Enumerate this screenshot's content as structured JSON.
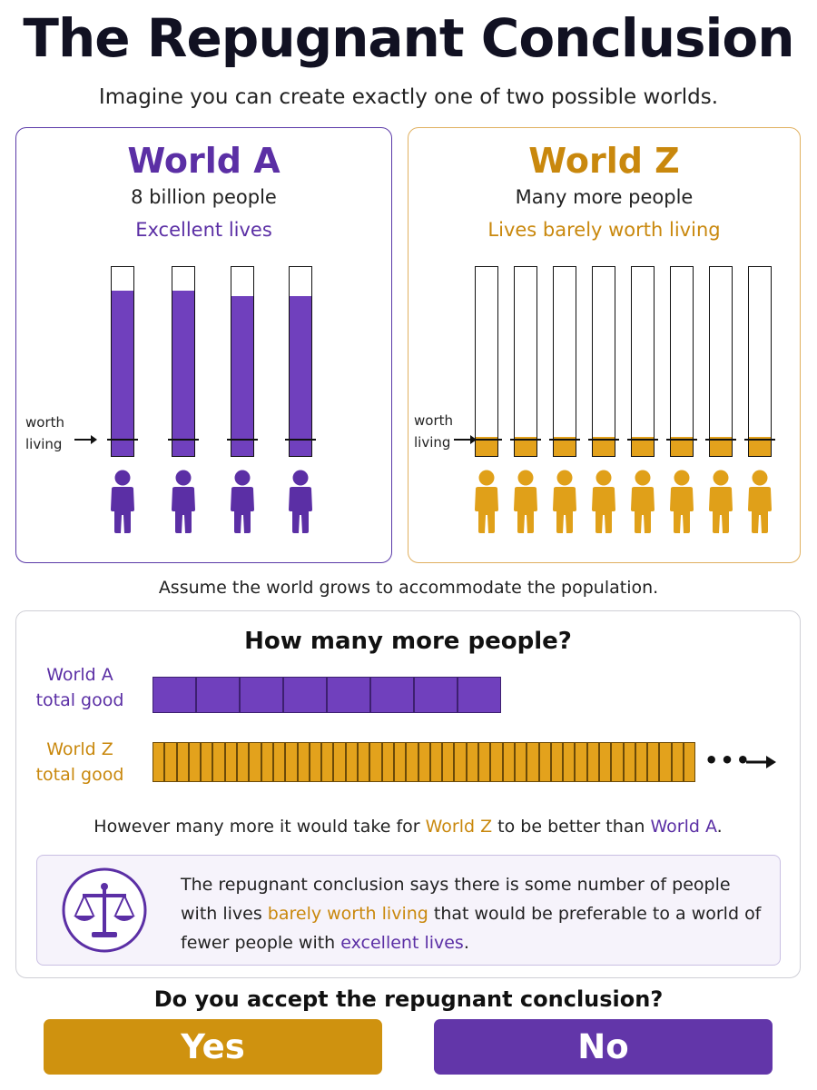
{
  "title": "The Repugnant Conclusion",
  "subtitle": "Imagine you can create exactly one of two possible worlds.",
  "colors": {
    "purple": "#5b2fa5",
    "purple_fill": "#7040bd",
    "gold": "#c9880d",
    "gold_fill": "#e3a21c"
  },
  "world_a": {
    "name": "World A",
    "population": "8 billion people",
    "quality": "Excellent lives",
    "threshold_label": "worth living",
    "bar_fill_fractions": [
      0.88,
      0.88,
      0.85,
      0.85
    ],
    "people_count": 4
  },
  "world_z": {
    "name": "World Z",
    "population": "Many more people",
    "quality": "Lives barely worth living",
    "threshold_label": "worth living",
    "bar_fill_fractions": [
      0.1,
      0.1,
      0.1,
      0.1,
      0.1,
      0.1,
      0.1,
      0.1
    ],
    "people_count": 8
  },
  "assumption": "Assume the world grows to accommodate the population.",
  "comparison": {
    "title": "How many more people?",
    "world_a_label": [
      "World A",
      "total good"
    ],
    "world_z_label": [
      "World Z",
      "total good"
    ],
    "world_a_blocks": 8,
    "world_z_blocks": 45,
    "continuation": "•••",
    "however_parts": [
      "However many more it would take for ",
      "World Z",
      " to be better than ",
      "World A",
      "."
    ],
    "quote_parts": [
      "The repugnant conclusion says there is some number of people with lives ",
      "barely worth living",
      " that would be preferable to a world of fewer people with ",
      "excellent lives",
      "."
    ],
    "icon": "scales-icon"
  },
  "question": "Do you accept the repugnant conclusion?",
  "buttons": {
    "yes": "Yes",
    "no": "No"
  }
}
